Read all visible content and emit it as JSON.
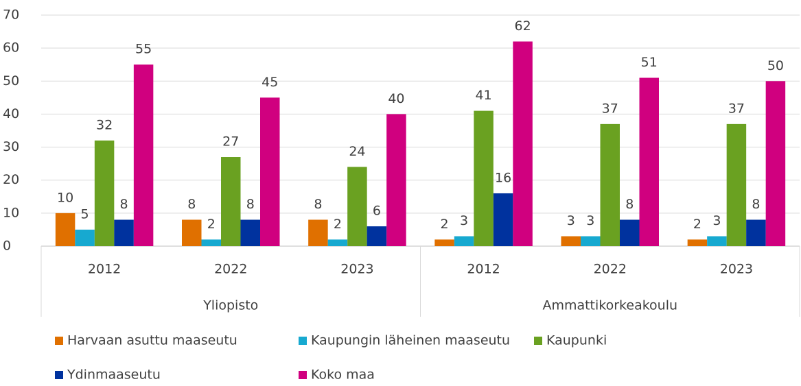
{
  "chart_data": {
    "type": "bar",
    "category_groups": [
      {
        "name": "Yliopisto",
        "categories": [
          "2012",
          "2022",
          "2023"
        ]
      },
      {
        "name": "Ammattikorkeakoulu",
        "categories": [
          "2012",
          "2022",
          "2023"
        ]
      }
    ],
    "series": [
      {
        "name": "Harvaan asuttu maaseutu",
        "color": "#e07000",
        "values": [
          10,
          8,
          8,
          2,
          3,
          2
        ]
      },
      {
        "name": "Kaupungin läheinen maaseutu",
        "color": "#17a9d0",
        "values": [
          5,
          2,
          2,
          3,
          3,
          3
        ]
      },
      {
        "name": "Kaupunki",
        "color": "#6aa121",
        "values": [
          32,
          27,
          24,
          41,
          37,
          37
        ]
      },
      {
        "name": "Ydinmaaseutu",
        "color": "#00329e",
        "values": [
          8,
          8,
          6,
          16,
          8,
          8
        ]
      },
      {
        "name": "Koko maa",
        "color": "#d0007f",
        "values": [
          55,
          45,
          40,
          62,
          51,
          50
        ]
      }
    ],
    "ylim": [
      0,
      70
    ],
    "yticks": [
      0,
      10,
      20,
      30,
      40,
      50,
      60,
      70
    ],
    "grid": true,
    "legend": "bottom"
  }
}
